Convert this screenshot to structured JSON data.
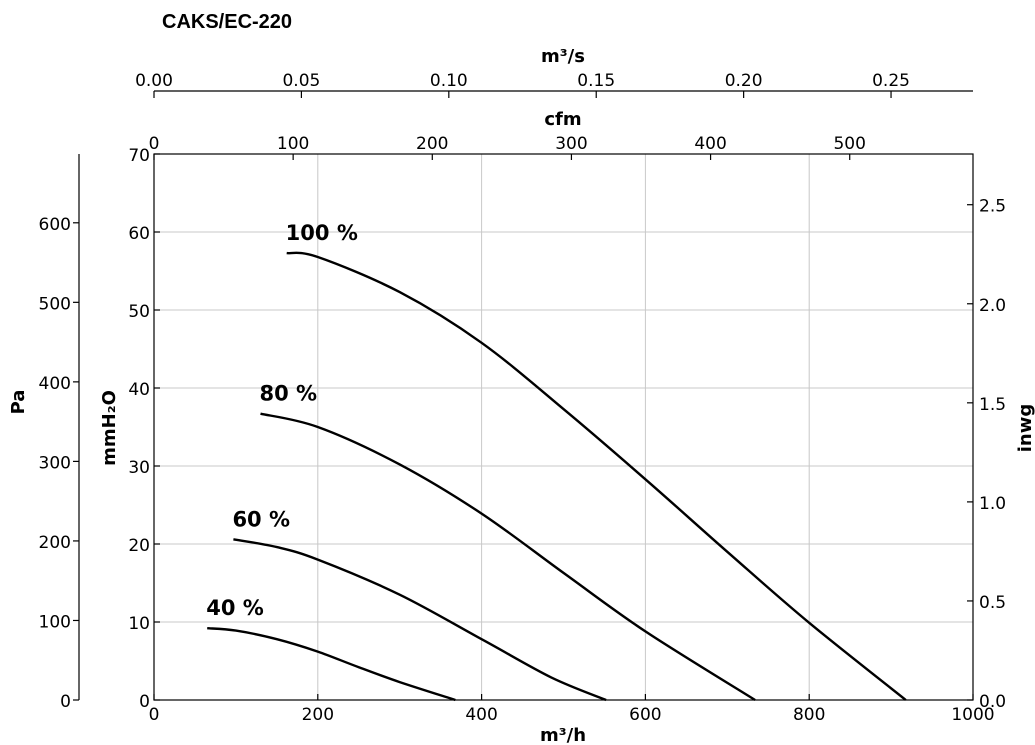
{
  "chart_data": {
    "type": "line",
    "title": "CAKS/EC-220",
    "x_axis": {
      "label": "m³/h",
      "range": [
        0,
        1000
      ],
      "ticks": [
        0,
        200,
        400,
        600,
        800,
        1000
      ],
      "tick_labels": [
        "0",
        "200",
        "400",
        "600",
        "800",
        "1000"
      ]
    },
    "x_top_axes": [
      {
        "label": "m³/s",
        "range": [
          0,
          0.2778
        ],
        "ticks": [
          0,
          0.05,
          0.1,
          0.15,
          0.2,
          0.25
        ],
        "tick_labels": [
          "0.00",
          "0.05",
          "0.10",
          "0.15",
          "0.20",
          "0.25"
        ]
      },
      {
        "label": "cfm",
        "range": [
          0,
          588.6
        ],
        "ticks": [
          0,
          100,
          200,
          300,
          400,
          500
        ],
        "tick_labels": [
          "0",
          "100",
          "200",
          "300",
          "400",
          "500"
        ]
      }
    ],
    "y_axis": {
      "label": "mmH₂O",
      "range": [
        0,
        70
      ],
      "ticks": [
        0,
        10,
        20,
        30,
        40,
        50,
        60,
        70
      ],
      "tick_labels": [
        "0",
        "10",
        "20",
        "30",
        "40",
        "50",
        "60",
        "70"
      ]
    },
    "y_left_outer_axis": {
      "label": "Pa",
      "range": [
        0,
        686.5
      ],
      "ticks": [
        0,
        100,
        200,
        300,
        400,
        500,
        600
      ],
      "tick_labels": [
        "0",
        "100",
        "200",
        "300",
        "400",
        "500",
        "600"
      ]
    },
    "y_right_axis": {
      "label": "inwg",
      "range": [
        0,
        2.756
      ],
      "ticks": [
        0,
        0.5,
        1,
        1.5,
        2,
        2.5
      ],
      "tick_labels": [
        "0.0",
        "0.5",
        "1.0",
        "1.5",
        "2.0",
        "2.5"
      ]
    },
    "grid": true,
    "series": [
      {
        "name": "100 %",
        "points": [
          [
            162,
            57.3
          ],
          [
            200,
            56.8
          ],
          [
            300,
            52.3
          ],
          [
            400,
            45.8
          ],
          [
            500,
            37.3
          ],
          [
            600,
            28.3
          ],
          [
            700,
            19.0
          ],
          [
            800,
            9.9
          ],
          [
            918,
            0
          ]
        ]
      },
      {
        "name": "80 %",
        "points": [
          [
            130,
            36.7
          ],
          [
            200,
            35.0
          ],
          [
            300,
            30.2
          ],
          [
            400,
            23.9
          ],
          [
            500,
            16.3
          ],
          [
            600,
            8.8
          ],
          [
            734,
            0
          ]
        ]
      },
      {
        "name": "60 %",
        "points": [
          [
            97,
            20.6
          ],
          [
            150,
            19.6
          ],
          [
            200,
            18.0
          ],
          [
            300,
            13.5
          ],
          [
            400,
            7.8
          ],
          [
            485,
            2.9
          ],
          [
            552,
            0
          ]
        ]
      },
      {
        "name": "40 %",
        "points": [
          [
            65,
            9.2
          ],
          [
            100,
            8.9
          ],
          [
            150,
            7.8
          ],
          [
            200,
            6.2
          ],
          [
            250,
            4.2
          ],
          [
            300,
            2.3
          ],
          [
            368,
            0
          ]
        ]
      }
    ]
  }
}
